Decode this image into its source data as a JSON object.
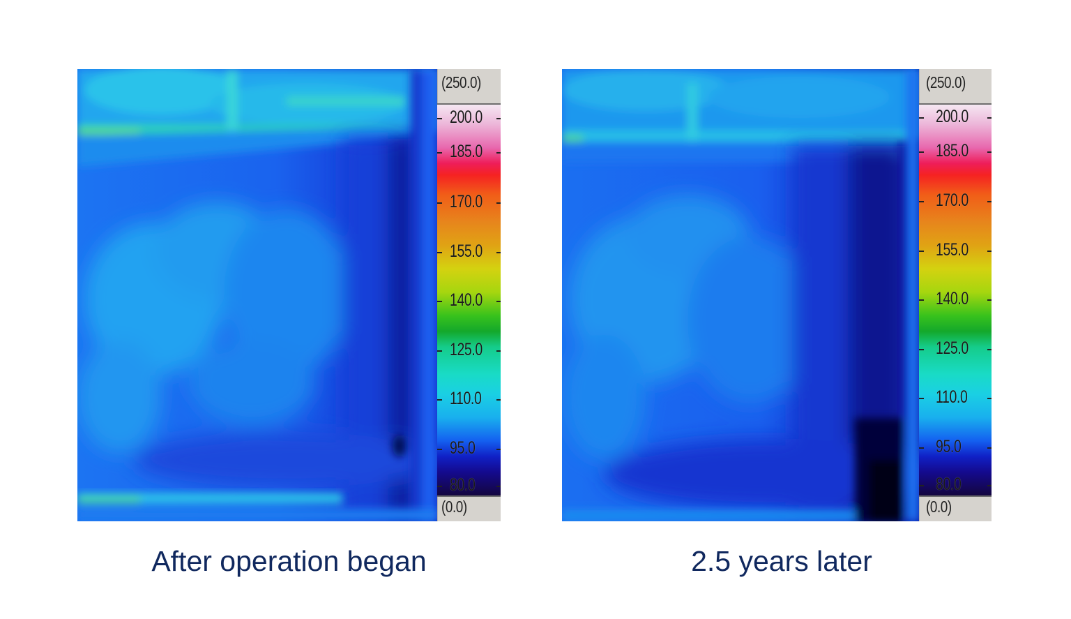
{
  "panels": [
    {
      "caption": "After operation began",
      "scale": {
        "max_label": "(250.0)",
        "min_label": "(0.0)",
        "ticks": [
          "200.0",
          "185.0",
          "170.0",
          "155.0",
          "140.0",
          "125.0",
          "110.0",
          "95.0",
          "80.0"
        ]
      }
    },
    {
      "caption": "2.5 years later",
      "scale": {
        "max_label": "(250.0)",
        "min_label": "(0.0)",
        "ticks": [
          "200.0",
          "185.0",
          "170.0",
          "155.0",
          "140.0",
          "125.0",
          "110.0",
          "95.0",
          "80.0"
        ]
      }
    }
  ],
  "colors": {
    "caption": "#10285e",
    "scale_background": "#d6d3ce",
    "thermal_base": "#1a5cf0",
    "thermal_light": "#1fb0ec",
    "thermal_dark": "#0a0a7a"
  }
}
